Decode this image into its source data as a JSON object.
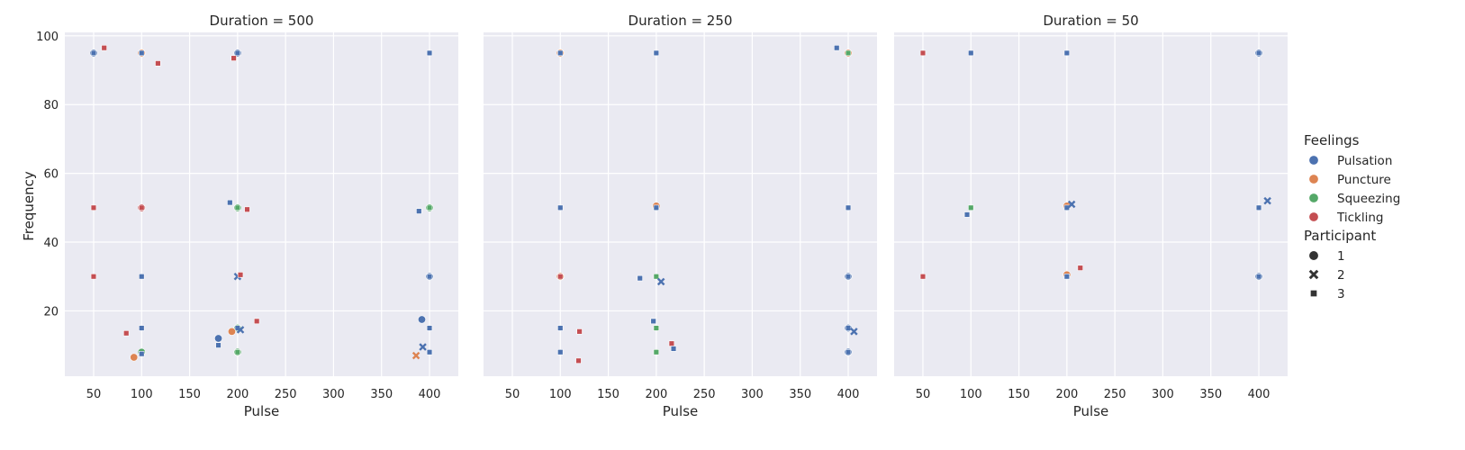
{
  "chart_data": {
    "type": "scatter",
    "xlabel": "Pulse",
    "ylabel": "Frequency",
    "xlim": [
      20,
      430
    ],
    "ylim": [
      1,
      101
    ],
    "xticks": [
      50,
      100,
      150,
      200,
      250,
      300,
      350,
      400
    ],
    "yticks": [
      20,
      40,
      60,
      80,
      100
    ],
    "grid": true,
    "colors": {
      "Pulsation": "#4c72b0",
      "Puncture": "#dd8452",
      "Squeezing": "#55a868",
      "Tickling": "#c44e52"
    },
    "legend": {
      "placement": "right",
      "hue_title": "Feelings",
      "hue_items": [
        "Pulsation",
        "Puncture",
        "Squeezing",
        "Tickling"
      ],
      "style_title": "Participant",
      "style_items": [
        {
          "label": "1",
          "shape": "circle"
        },
        {
          "label": "2",
          "shape": "x"
        },
        {
          "label": "3",
          "shape": "square"
        }
      ]
    },
    "panels": [
      {
        "title": "Duration = 500",
        "points": [
          {
            "x": 50,
            "y": 95,
            "feeling": "Pulsation",
            "participant": "1"
          },
          {
            "x": 50,
            "y": 95,
            "feeling": "Pulsation",
            "participant": "3"
          },
          {
            "x": 61,
            "y": 96.5,
            "feeling": "Tickling",
            "participant": "3"
          },
          {
            "x": 100,
            "y": 95,
            "feeling": "Puncture",
            "participant": "1"
          },
          {
            "x": 100,
            "y": 95,
            "feeling": "Pulsation",
            "participant": "3"
          },
          {
            "x": 117,
            "y": 92,
            "feeling": "Tickling",
            "participant": "3"
          },
          {
            "x": 200,
            "y": 95,
            "feeling": "Pulsation",
            "participant": "1"
          },
          {
            "x": 200,
            "y": 95,
            "feeling": "Pulsation",
            "participant": "3"
          },
          {
            "x": 196,
            "y": 93.5,
            "feeling": "Tickling",
            "participant": "3"
          },
          {
            "x": 400,
            "y": 95,
            "feeling": "Pulsation",
            "participant": "3"
          },
          {
            "x": 50,
            "y": 50,
            "feeling": "Tickling",
            "participant": "3"
          },
          {
            "x": 100,
            "y": 50,
            "feeling": "Tickling",
            "participant": "1"
          },
          {
            "x": 100,
            "y": 50,
            "feeling": "Tickling",
            "participant": "3"
          },
          {
            "x": 192,
            "y": 51.5,
            "feeling": "Pulsation",
            "participant": "3"
          },
          {
            "x": 200,
            "y": 50,
            "feeling": "Squeezing",
            "participant": "1"
          },
          {
            "x": 200,
            "y": 50,
            "feeling": "Squeezing",
            "participant": "3"
          },
          {
            "x": 210,
            "y": 49.5,
            "feeling": "Tickling",
            "participant": "3"
          },
          {
            "x": 389,
            "y": 49,
            "feeling": "Pulsation",
            "participant": "3"
          },
          {
            "x": 400,
            "y": 50,
            "feeling": "Squeezing",
            "participant": "1"
          },
          {
            "x": 400,
            "y": 50,
            "feeling": "Squeezing",
            "participant": "3"
          },
          {
            "x": 50,
            "y": 30,
            "feeling": "Tickling",
            "participant": "3"
          },
          {
            "x": 100,
            "y": 30,
            "feeling": "Pulsation",
            "participant": "3"
          },
          {
            "x": 200,
            "y": 30,
            "feeling": "Pulsation",
            "participant": "2"
          },
          {
            "x": 203,
            "y": 30.5,
            "feeling": "Tickling",
            "participant": "3"
          },
          {
            "x": 400,
            "y": 30,
            "feeling": "Pulsation",
            "participant": "1"
          },
          {
            "x": 400,
            "y": 30,
            "feeling": "Pulsation",
            "participant": "3"
          },
          {
            "x": 100,
            "y": 15,
            "feeling": "Pulsation",
            "participant": "3"
          },
          {
            "x": 84,
            "y": 13.5,
            "feeling": "Tickling",
            "participant": "3"
          },
          {
            "x": 200,
            "y": 15,
            "feeling": "Squeezing",
            "participant": "1"
          },
          {
            "x": 200,
            "y": 15,
            "feeling": "Pulsation",
            "participant": "3"
          },
          {
            "x": 203,
            "y": 14.5,
            "feeling": "Pulsation",
            "participant": "2"
          },
          {
            "x": 220,
            "y": 17,
            "feeling": "Tickling",
            "participant": "3"
          },
          {
            "x": 180,
            "y": 12,
            "feeling": "Pulsation",
            "participant": "1"
          },
          {
            "x": 180,
            "y": 10,
            "feeling": "Pulsation",
            "participant": "3"
          },
          {
            "x": 194,
            "y": 14,
            "feeling": "Puncture",
            "participant": "1"
          },
          {
            "x": 392,
            "y": 17.5,
            "feeling": "Pulsation",
            "participant": "1"
          },
          {
            "x": 400,
            "y": 15,
            "feeling": "Pulsation",
            "participant": "3"
          },
          {
            "x": 100,
            "y": 8,
            "feeling": "Squeezing",
            "participant": "1"
          },
          {
            "x": 100,
            "y": 7.5,
            "feeling": "Pulsation",
            "participant": "3"
          },
          {
            "x": 92,
            "y": 6.5,
            "feeling": "Puncture",
            "participant": "1"
          },
          {
            "x": 200,
            "y": 8,
            "feeling": "Squeezing",
            "participant": "1"
          },
          {
            "x": 200,
            "y": 8,
            "feeling": "Squeezing",
            "participant": "3"
          },
          {
            "x": 393,
            "y": 9.5,
            "feeling": "Pulsation",
            "participant": "2"
          },
          {
            "x": 386,
            "y": 7,
            "feeling": "Puncture",
            "participant": "2"
          },
          {
            "x": 400,
            "y": 8,
            "feeling": "Pulsation",
            "participant": "3"
          }
        ]
      },
      {
        "title": "Duration = 250",
        "points": [
          {
            "x": 100,
            "y": 95,
            "feeling": "Puncture",
            "participant": "1"
          },
          {
            "x": 100,
            "y": 95,
            "feeling": "Pulsation",
            "participant": "3"
          },
          {
            "x": 200,
            "y": 95,
            "feeling": "Pulsation",
            "participant": "3"
          },
          {
            "x": 388,
            "y": 96.5,
            "feeling": "Pulsation",
            "participant": "3"
          },
          {
            "x": 400,
            "y": 95,
            "feeling": "Puncture",
            "participant": "1"
          },
          {
            "x": 400,
            "y": 95,
            "feeling": "Squeezing",
            "participant": "3"
          },
          {
            "x": 100,
            "y": 50,
            "feeling": "Pulsation",
            "participant": "3"
          },
          {
            "x": 200,
            "y": 50.5,
            "feeling": "Puncture",
            "participant": "1"
          },
          {
            "x": 200,
            "y": 50,
            "feeling": "Pulsation",
            "participant": "3"
          },
          {
            "x": 400,
            "y": 50,
            "feeling": "Pulsation",
            "participant": "3"
          },
          {
            "x": 100,
            "y": 30,
            "feeling": "Puncture",
            "participant": "1"
          },
          {
            "x": 100,
            "y": 30,
            "feeling": "Tickling",
            "participant": "3"
          },
          {
            "x": 183,
            "y": 29.5,
            "feeling": "Pulsation",
            "participant": "3"
          },
          {
            "x": 200,
            "y": 30,
            "feeling": "Squeezing",
            "participant": "3"
          },
          {
            "x": 205,
            "y": 28.5,
            "feeling": "Pulsation",
            "participant": "2"
          },
          {
            "x": 400,
            "y": 30,
            "feeling": "Pulsation",
            "participant": "1"
          },
          {
            "x": 400,
            "y": 30,
            "feeling": "Pulsation",
            "participant": "3"
          },
          {
            "x": 100,
            "y": 15,
            "feeling": "Pulsation",
            "participant": "3"
          },
          {
            "x": 120,
            "y": 14,
            "feeling": "Tickling",
            "participant": "3"
          },
          {
            "x": 197,
            "y": 17,
            "feeling": "Pulsation",
            "participant": "3"
          },
          {
            "x": 200,
            "y": 15,
            "feeling": "Squeezing",
            "participant": "3"
          },
          {
            "x": 400,
            "y": 15,
            "feeling": "Pulsation",
            "participant": "1"
          },
          {
            "x": 400,
            "y": 15,
            "feeling": "Pulsation",
            "participant": "3"
          },
          {
            "x": 406,
            "y": 14,
            "feeling": "Pulsation",
            "participant": "2"
          },
          {
            "x": 100,
            "y": 8,
            "feeling": "Pulsation",
            "participant": "3"
          },
          {
            "x": 119,
            "y": 5.5,
            "feeling": "Tickling",
            "participant": "3"
          },
          {
            "x": 200,
            "y": 8,
            "feeling": "Squeezing",
            "participant": "3"
          },
          {
            "x": 216,
            "y": 10.5,
            "feeling": "Tickling",
            "participant": "3"
          },
          {
            "x": 218,
            "y": 9,
            "feeling": "Pulsation",
            "participant": "3"
          },
          {
            "x": 400,
            "y": 8,
            "feeling": "Pulsation",
            "participant": "1"
          },
          {
            "x": 400,
            "y": 8,
            "feeling": "Pulsation",
            "participant": "3"
          }
        ]
      },
      {
        "title": "Duration = 50",
        "points": [
          {
            "x": 50,
            "y": 95,
            "feeling": "Tickling",
            "participant": "3"
          },
          {
            "x": 100,
            "y": 95,
            "feeling": "Pulsation",
            "participant": "3"
          },
          {
            "x": 200,
            "y": 95,
            "feeling": "Pulsation",
            "participant": "3"
          },
          {
            "x": 400,
            "y": 95,
            "feeling": "Pulsation",
            "participant": "1"
          },
          {
            "x": 400,
            "y": 95,
            "feeling": "Pulsation",
            "participant": "3"
          },
          {
            "x": 100,
            "y": 50,
            "feeling": "Squeezing",
            "participant": "3"
          },
          {
            "x": 96,
            "y": 48,
            "feeling": "Pulsation",
            "participant": "3"
          },
          {
            "x": 200,
            "y": 50.5,
            "feeling": "Puncture",
            "participant": "1"
          },
          {
            "x": 200,
            "y": 50,
            "feeling": "Pulsation",
            "participant": "3"
          },
          {
            "x": 205,
            "y": 51,
            "feeling": "Pulsation",
            "participant": "2"
          },
          {
            "x": 400,
            "y": 50,
            "feeling": "Pulsation",
            "participant": "3"
          },
          {
            "x": 409,
            "y": 52,
            "feeling": "Pulsation",
            "participant": "2"
          },
          {
            "x": 50,
            "y": 30,
            "feeling": "Tickling",
            "participant": "3"
          },
          {
            "x": 200,
            "y": 30.5,
            "feeling": "Puncture",
            "participant": "1"
          },
          {
            "x": 200,
            "y": 30,
            "feeling": "Pulsation",
            "participant": "3"
          },
          {
            "x": 214,
            "y": 32.5,
            "feeling": "Tickling",
            "participant": "3"
          },
          {
            "x": 400,
            "y": 30,
            "feeling": "Pulsation",
            "participant": "1"
          },
          {
            "x": 400,
            "y": 30,
            "feeling": "Pulsation",
            "participant": "3"
          }
        ]
      }
    ]
  }
}
